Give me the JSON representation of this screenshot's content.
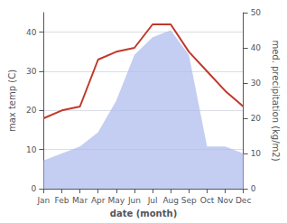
{
  "chart_data": {
    "type": "line",
    "categories": [
      "Jan",
      "Feb",
      "Mar",
      "Apr",
      "May",
      "Jun",
      "Jul",
      "Aug",
      "Sep",
      "Oct",
      "Nov",
      "Dec"
    ],
    "series": [
      {
        "type": "area",
        "color": "#b0bcee",
        "axis": "y2",
        "values": [
          8,
          10,
          12,
          16,
          25,
          38,
          43,
          45,
          38,
          12,
          12,
          10
        ]
      },
      {
        "type": "line",
        "color": "#c0392b",
        "values": [
          18,
          20,
          21,
          33,
          35,
          36,
          42,
          42,
          35,
          30,
          25,
          21
        ]
      }
    ],
    "xlabel": "date (month)",
    "ylabel": "max temp (C)",
    "y2label": "med. precipitation (kg/m2)",
    "ylim": [
      0,
      45
    ],
    "yticks": [
      0,
      10,
      20,
      30,
      40
    ],
    "y2lim": [
      0,
      50
    ],
    "y2ticks": [
      0,
      10,
      20,
      30,
      40,
      50
    ],
    "grid": true
  }
}
